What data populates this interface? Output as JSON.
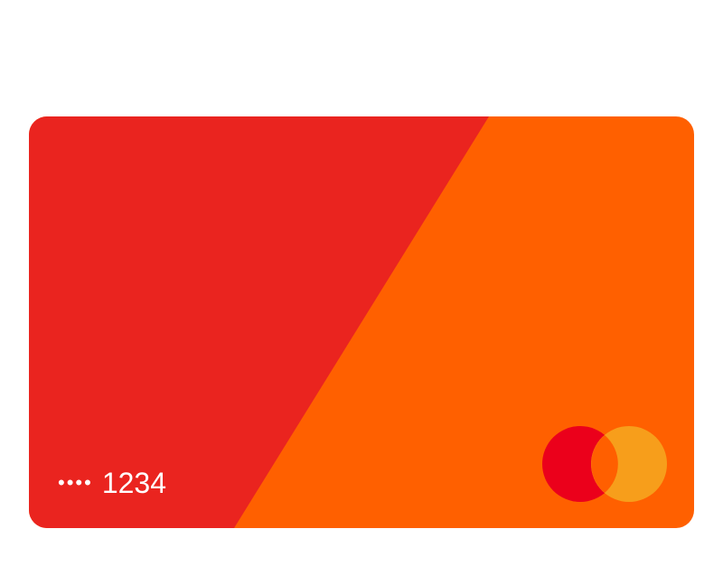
{
  "card": {
    "masked_prefix": "••••",
    "last4": "1234",
    "brand_icon": "mastercard-icon",
    "colors": {
      "left_panel": "#EA241F",
      "right_panel": "#FF6000",
      "logo_red": "#EB001B",
      "logo_yellow": "#F79E1B",
      "logo_overlap": "#FF5F00"
    }
  }
}
